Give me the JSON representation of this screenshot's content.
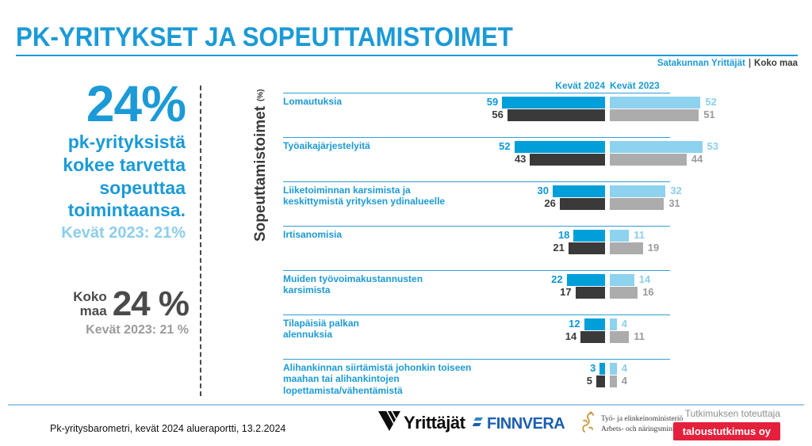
{
  "title": "PK-YRITYKSET JA SOPEUTTAMISTOIMET",
  "legend": {
    "region": "Satakunnan Yrittäjät",
    "separator": "|",
    "national": "Koko maa"
  },
  "highlight": {
    "big_percent": "24%",
    "line1": "pk-yrityksistä",
    "line2": "kokee tarvetta",
    "line3": "sopeuttaa",
    "line4": "toimintaansa.",
    "previous": "Kevät 2023: 21%"
  },
  "national_box": {
    "label": "Koko\nmaa",
    "value": "24 %",
    "previous": "Kevät 2023: 21 %"
  },
  "axis": {
    "label": "Sopeuttamistoimet",
    "unit": "(%)"
  },
  "chart_data": {
    "type": "bar",
    "orientation": "horizontal",
    "column_headers": [
      "Kevät 2024",
      "Kevät 2023"
    ],
    "xlim": [
      0,
      60
    ],
    "grid": false,
    "series_meta": [
      {
        "key": "region_2024",
        "name": "Satakunnan Yrittäjät, kevät 2024",
        "color": "#009FDA"
      },
      {
        "key": "national_2024",
        "name": "Koko maa, kevät 2024",
        "color": "#3A3A3A"
      },
      {
        "key": "region_2023",
        "name": "Satakunnan Yrittäjät, kevät 2023",
        "color": "#8DD2EE"
      },
      {
        "key": "national_2023",
        "name": "Koko maa, kevät 2023",
        "color": "#ACACAC"
      }
    ],
    "value_text_colors": {
      "region_2024": "#0A99D6",
      "national_2024": "#3A3A3A",
      "region_2023": "#8CCEEB",
      "national_2023": "#9B9B9B"
    },
    "rows": [
      {
        "label": "Lomautuksia",
        "region_2024": 59,
        "national_2024": 56,
        "region_2023": 52,
        "national_2023": 51
      },
      {
        "label": "Työaikajärjestelyitä",
        "region_2024": 52,
        "national_2024": 43,
        "region_2023": 53,
        "national_2023": 44
      },
      {
        "label": "Liiketoiminnan karsimista ja\nkeskittymistä yrityksen ydinalueelle",
        "region_2024": 30,
        "national_2024": 26,
        "region_2023": 32,
        "national_2023": 31
      },
      {
        "label": "Irtisanomisia",
        "region_2024": 18,
        "national_2024": 21,
        "region_2023": 11,
        "national_2023": 19
      },
      {
        "label": "Muiden työvoimakustannusten\nkarsimista",
        "region_2024": 22,
        "national_2024": 17,
        "region_2023": 14,
        "national_2023": 16
      },
      {
        "label": "Tilapäisiä palkan\nalennuksia",
        "region_2024": 12,
        "national_2024": 14,
        "region_2023": 4,
        "national_2023": 11
      },
      {
        "label": "Alihankinnan siirtämistä johonkin toiseen\nmaahan tai alihankintojen\nlopettamista/vähentämistä",
        "region_2024": 3,
        "national_2024": 5,
        "region_2023": 4,
        "national_2023": 4
      }
    ]
  },
  "footer": {
    "note": "Pk-yritysbarometri, kevät 2024 alueraportti, 13.2.2024",
    "logo_yrittajat": "Yrittäjät",
    "logo_finnvera": "FINNVERA",
    "ministry": "Työ- ja elinkeinoministeriö\nArbets- och näringsministeriet",
    "research_label": "Tutkimuksen toteuttaja",
    "research_badge": "taloustutkimus oy"
  },
  "colors": {
    "accent_blue": "#1B9AD7",
    "light_blue": "#8DD2EE",
    "dark_gray": "#3A3A3A",
    "mid_gray": "#ACACAC",
    "badge_red": "#E4213C"
  }
}
